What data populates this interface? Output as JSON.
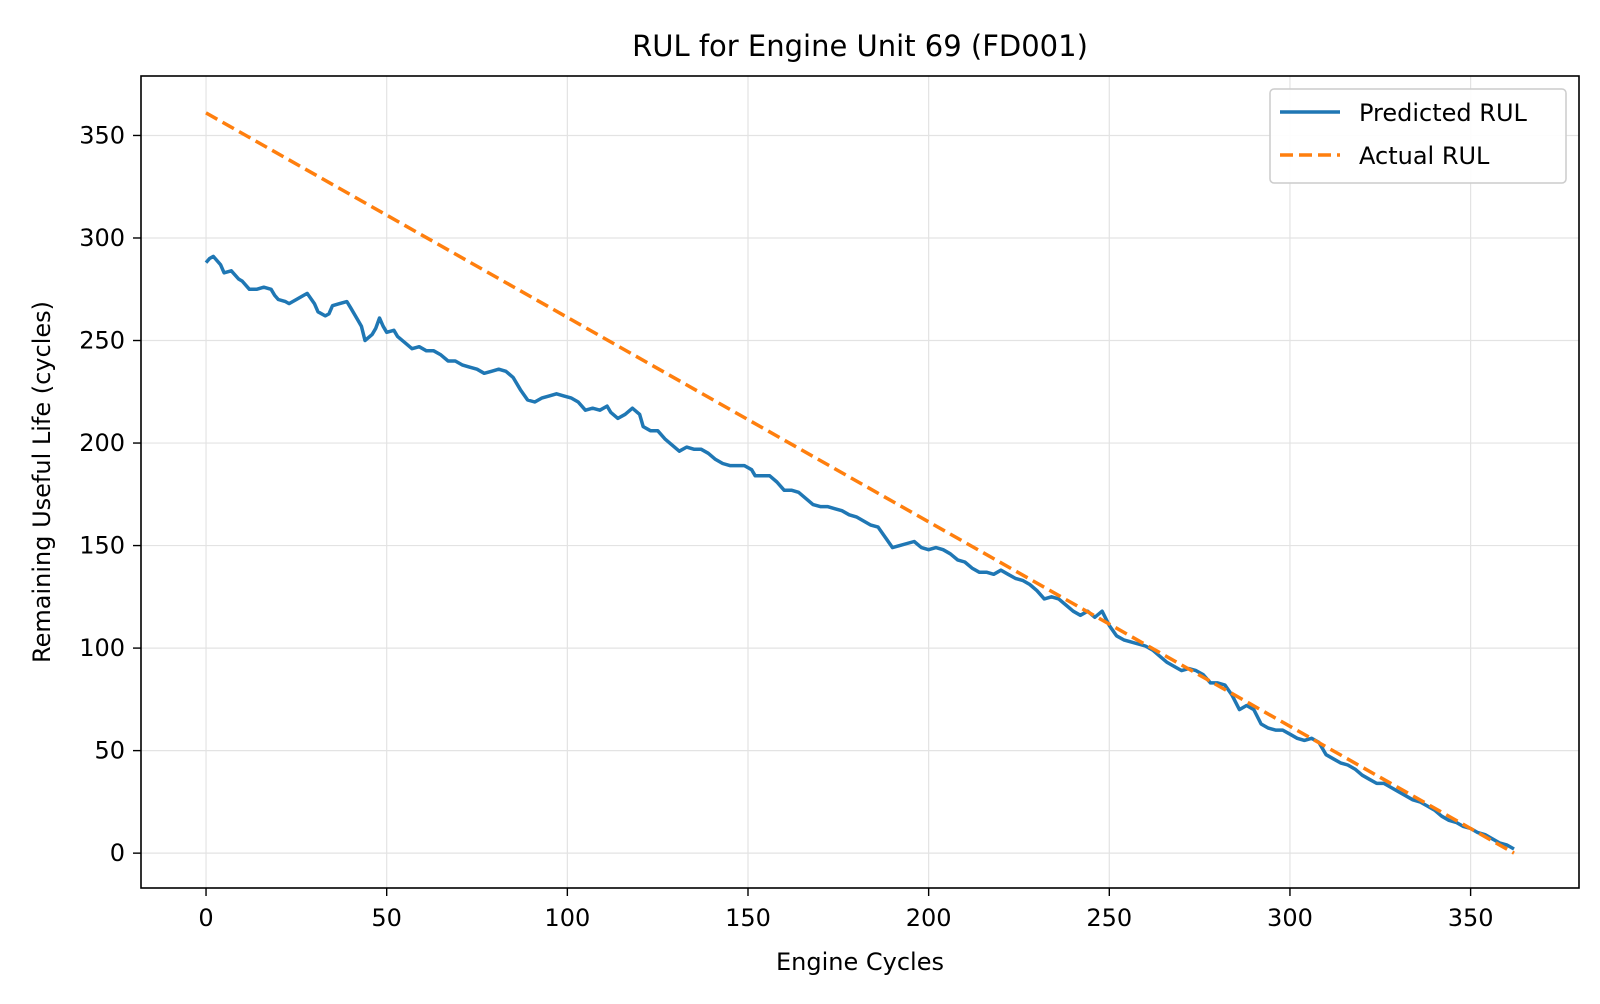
{
  "chart_data": {
    "type": "line",
    "title": "RUL for Engine Unit 69 (FD001)",
    "xlabel": "Engine Cycles",
    "ylabel": "Remaining Useful Life (cycles)",
    "xlim": [
      -18,
      380
    ],
    "ylim": [
      -17,
      379
    ],
    "xticks": [
      0,
      50,
      100,
      150,
      200,
      250,
      300,
      350
    ],
    "yticks": [
      0,
      50,
      100,
      150,
      200,
      250,
      300,
      350
    ],
    "grid": true,
    "legend_position": "top-right",
    "series": [
      {
        "name": "Predicted RUL",
        "color": "#1f77b4",
        "style": "solid",
        "points": [
          [
            0,
            288
          ],
          [
            1,
            290
          ],
          [
            2,
            291
          ],
          [
            4,
            287
          ],
          [
            5,
            283
          ],
          [
            7,
            284
          ],
          [
            9,
            280
          ],
          [
            10,
            279
          ],
          [
            12,
            275
          ],
          [
            14,
            275
          ],
          [
            16,
            276
          ],
          [
            18,
            275
          ],
          [
            19,
            272
          ],
          [
            20,
            270
          ],
          [
            22,
            269
          ],
          [
            23,
            268
          ],
          [
            25,
            270
          ],
          [
            27,
            272
          ],
          [
            28,
            273
          ],
          [
            30,
            268
          ],
          [
            31,
            264
          ],
          [
            33,
            262
          ],
          [
            34,
            263
          ],
          [
            35,
            267
          ],
          [
            37,
            268
          ],
          [
            39,
            269
          ],
          [
            40,
            266
          ],
          [
            42,
            260
          ],
          [
            43,
            257
          ],
          [
            44,
            250
          ],
          [
            46,
            253
          ],
          [
            47,
            256
          ],
          [
            48,
            261
          ],
          [
            49,
            257
          ],
          [
            50,
            254
          ],
          [
            52,
            255
          ],
          [
            53,
            252
          ],
          [
            55,
            249
          ],
          [
            57,
            246
          ],
          [
            59,
            247
          ],
          [
            61,
            245
          ],
          [
            63,
            245
          ],
          [
            65,
            243
          ],
          [
            67,
            240
          ],
          [
            69,
            240
          ],
          [
            71,
            238
          ],
          [
            73,
            237
          ],
          [
            75,
            236
          ],
          [
            77,
            234
          ],
          [
            79,
            235
          ],
          [
            81,
            236
          ],
          [
            83,
            235
          ],
          [
            85,
            232
          ],
          [
            87,
            226
          ],
          [
            89,
            221
          ],
          [
            91,
            220
          ],
          [
            93,
            222
          ],
          [
            95,
            223
          ],
          [
            97,
            224
          ],
          [
            99,
            223
          ],
          [
            101,
            222
          ],
          [
            103,
            220
          ],
          [
            105,
            216
          ],
          [
            107,
            217
          ],
          [
            109,
            216
          ],
          [
            111,
            218
          ],
          [
            112,
            215
          ],
          [
            114,
            212
          ],
          [
            116,
            214
          ],
          [
            118,
            217
          ],
          [
            120,
            214
          ],
          [
            121,
            208
          ],
          [
            123,
            206
          ],
          [
            125,
            206
          ],
          [
            127,
            202
          ],
          [
            129,
            199
          ],
          [
            131,
            196
          ],
          [
            133,
            198
          ],
          [
            135,
            197
          ],
          [
            137,
            197
          ],
          [
            139,
            195
          ],
          [
            141,
            192
          ],
          [
            143,
            190
          ],
          [
            145,
            189
          ],
          [
            147,
            189
          ],
          [
            149,
            189
          ],
          [
            151,
            187
          ],
          [
            152,
            184
          ],
          [
            154,
            184
          ],
          [
            156,
            184
          ],
          [
            158,
            181
          ],
          [
            160,
            177
          ],
          [
            162,
            177
          ],
          [
            164,
            176
          ],
          [
            166,
            173
          ],
          [
            168,
            170
          ],
          [
            170,
            169
          ],
          [
            172,
            169
          ],
          [
            174,
            168
          ],
          [
            176,
            167
          ],
          [
            178,
            165
          ],
          [
            180,
            164
          ],
          [
            182,
            162
          ],
          [
            184,
            160
          ],
          [
            186,
            159
          ],
          [
            188,
            154
          ],
          [
            190,
            149
          ],
          [
            192,
            150
          ],
          [
            194,
            151
          ],
          [
            196,
            152
          ],
          [
            198,
            149
          ],
          [
            200,
            148
          ],
          [
            202,
            149
          ],
          [
            204,
            148
          ],
          [
            206,
            146
          ],
          [
            208,
            143
          ],
          [
            210,
            142
          ],
          [
            212,
            139
          ],
          [
            214,
            137
          ],
          [
            216,
            137
          ],
          [
            218,
            136
          ],
          [
            220,
            138
          ],
          [
            222,
            136
          ],
          [
            224,
            134
          ],
          [
            226,
            133
          ],
          [
            228,
            131
          ],
          [
            230,
            128
          ],
          [
            232,
            124
          ],
          [
            234,
            125
          ],
          [
            236,
            124
          ],
          [
            238,
            121
          ],
          [
            240,
            118
          ],
          [
            242,
            116
          ],
          [
            244,
            118
          ],
          [
            246,
            115
          ],
          [
            248,
            118
          ],
          [
            250,
            111
          ],
          [
            252,
            106
          ],
          [
            254,
            104
          ],
          [
            256,
            103
          ],
          [
            258,
            102
          ],
          [
            260,
            101
          ],
          [
            262,
            99
          ],
          [
            264,
            96
          ],
          [
            266,
            93
          ],
          [
            268,
            91
          ],
          [
            270,
            89
          ],
          [
            272,
            90
          ],
          [
            274,
            89
          ],
          [
            276,
            87
          ],
          [
            278,
            83
          ],
          [
            280,
            83
          ],
          [
            282,
            82
          ],
          [
            284,
            77
          ],
          [
            286,
            70
          ],
          [
            288,
            72
          ],
          [
            290,
            70
          ],
          [
            292,
            63
          ],
          [
            294,
            61
          ],
          [
            296,
            60
          ],
          [
            298,
            60
          ],
          [
            300,
            58
          ],
          [
            302,
            56
          ],
          [
            304,
            55
          ],
          [
            306,
            56
          ],
          [
            308,
            54
          ],
          [
            310,
            48
          ],
          [
            312,
            46
          ],
          [
            314,
            44
          ],
          [
            316,
            43
          ],
          [
            318,
            41
          ],
          [
            320,
            38
          ],
          [
            322,
            36
          ],
          [
            324,
            34
          ],
          [
            326,
            34
          ],
          [
            328,
            32
          ],
          [
            330,
            30
          ],
          [
            332,
            28
          ],
          [
            334,
            26
          ],
          [
            336,
            25
          ],
          [
            338,
            23
          ],
          [
            340,
            21
          ],
          [
            342,
            18
          ],
          [
            344,
            16
          ],
          [
            346,
            15
          ],
          [
            348,
            13
          ],
          [
            350,
            12
          ],
          [
            352,
            10
          ],
          [
            354,
            9
          ],
          [
            356,
            7
          ],
          [
            358,
            5
          ],
          [
            360,
            4
          ],
          [
            362,
            2
          ]
        ]
      },
      {
        "name": "Actual RUL",
        "color": "#ff7f0e",
        "style": "dashed",
        "points": [
          [
            0,
            361
          ],
          [
            362,
            0
          ]
        ]
      }
    ]
  }
}
